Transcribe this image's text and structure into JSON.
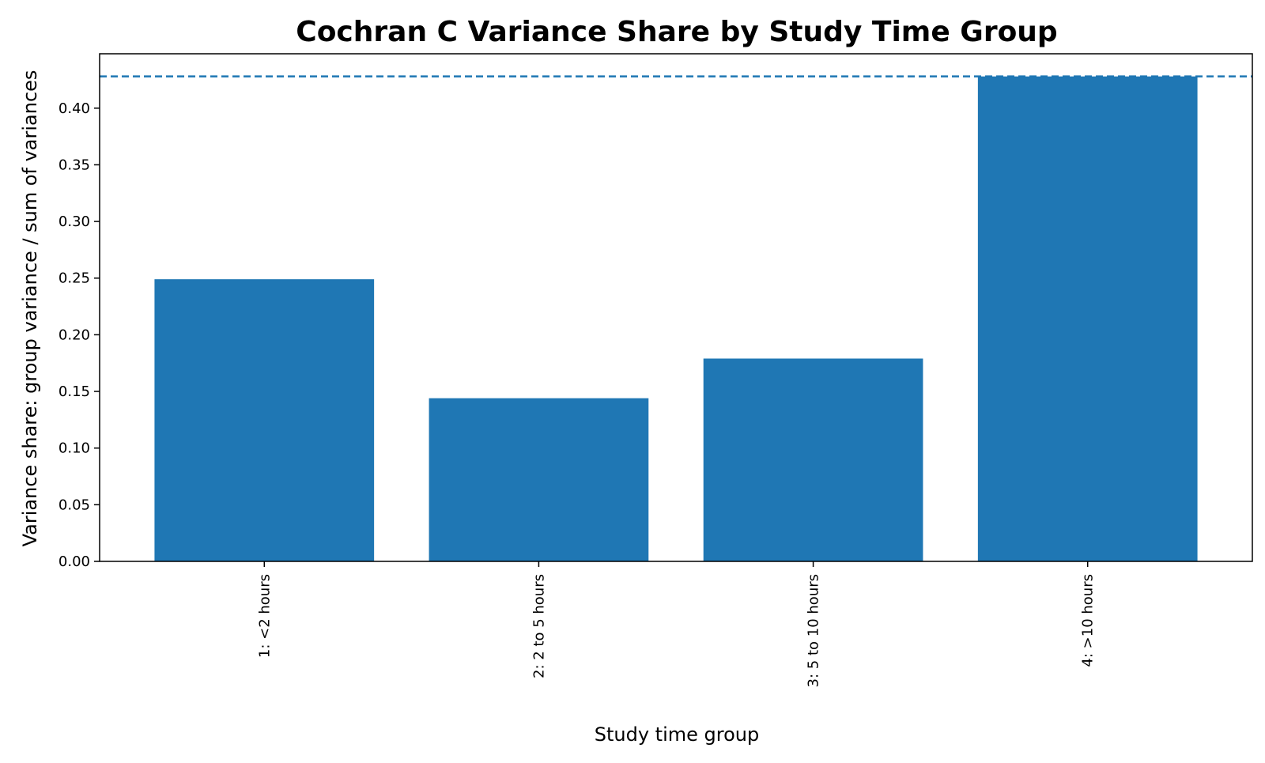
{
  "chart_data": {
    "type": "bar",
    "title": "Cochran C Variance Share by Study Time Group",
    "xlabel": "Study time group",
    "ylabel": "Variance share: group variance / sum of variances",
    "categories": [
      "1: <2 hours",
      "2: 2 to 5 hours",
      "3: 5 to 10 hours",
      "4: >10 hours"
    ],
    "values": [
      0.249,
      0.144,
      0.179,
      0.428
    ],
    "ylim": [
      0,
      0.448
    ],
    "yticks": [
      "0.00",
      "0.05",
      "0.10",
      "0.15",
      "0.20",
      "0.25",
      "0.30",
      "0.35",
      "0.40"
    ],
    "reference_line": {
      "value": 0.428,
      "style": "dashed"
    },
    "bar_color": "#1f77b4",
    "line_color": "#1f77b4",
    "grid": false,
    "legend": "none"
  }
}
